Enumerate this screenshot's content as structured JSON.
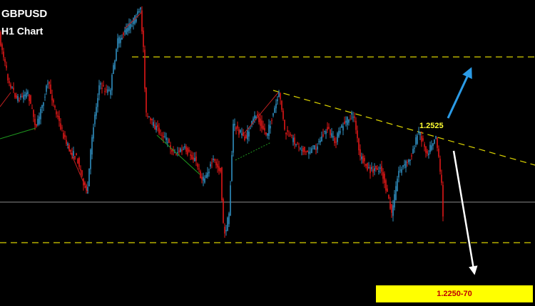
{
  "header": {
    "title": "GBPUSD",
    "subtitle": "H1 Chart"
  },
  "annotations": {
    "upper_level": "1.2525",
    "target": "1.2250-70"
  }
}
